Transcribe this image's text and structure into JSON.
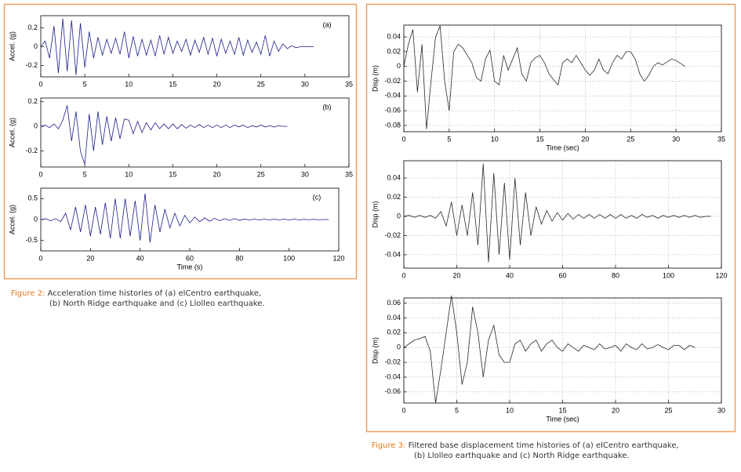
{
  "chart_data": [
    {
      "type": "line",
      "ylabel": "Accel. (g)",
      "annotation": "(a)",
      "color": "#1c1c8a",
      "grid": false,
      "xlim": [
        0,
        35
      ],
      "ylim": [
        -0.32,
        0.33
      ],
      "xticks": [
        0,
        5,
        10,
        15,
        20,
        25,
        30,
        35
      ],
      "yticks": [
        -0.2,
        0,
        0.2
      ],
      "x": [
        0,
        0.5,
        1,
        1.5,
        2,
        2.5,
        3,
        3.5,
        4,
        4.5,
        5,
        5.5,
        6,
        6.5,
        7,
        7.5,
        8,
        8.5,
        9,
        9.5,
        10,
        10.5,
        11,
        11.5,
        12,
        12.5,
        13,
        13.5,
        14,
        14.5,
        15,
        15.5,
        16,
        16.5,
        17,
        17.5,
        18,
        18.5,
        19,
        19.5,
        20,
        20.5,
        21,
        21.5,
        22,
        22.5,
        23,
        23.5,
        24,
        24.5,
        25,
        25.5,
        26,
        26.5,
        27,
        27.5,
        28,
        28.5,
        29,
        29.5,
        30,
        30.5,
        31
      ],
      "values": [
        0,
        0.06,
        -0.12,
        0.22,
        -0.28,
        0.3,
        -0.26,
        0.28,
        -0.3,
        0.25,
        -0.22,
        0.16,
        -0.12,
        0.1,
        -0.09,
        0.08,
        -0.07,
        0.09,
        -0.08,
        0.16,
        -0.12,
        0.11,
        -0.1,
        0.08,
        -0.09,
        0.07,
        -0.1,
        0.12,
        -0.08,
        0.1,
        -0.07,
        0.06,
        -0.05,
        0.08,
        -0.09,
        0.07,
        -0.06,
        0.1,
        -0.08,
        0.09,
        -0.1,
        0.08,
        -0.07,
        0.06,
        -0.08,
        0.1,
        -0.09,
        0.07,
        -0.06,
        0.05,
        -0.08,
        0.12,
        -0.1,
        0.06,
        -0.05,
        0.03,
        -0.02,
        0.01,
        -0.01,
        0,
        0,
        0,
        0
      ]
    },
    {
      "type": "line",
      "ylabel": "Accel. (g)",
      "annotation": "(b)",
      "color": "#1c1c8a",
      "grid": false,
      "xlim": [
        0,
        35
      ],
      "ylim": [
        -0.33,
        0.23
      ],
      "xticks": [
        0,
        5,
        10,
        15,
        20,
        25,
        30,
        35
      ],
      "yticks": [
        -0.2,
        0,
        0.2
      ],
      "x": [
        0,
        0.5,
        1,
        1.5,
        2,
        2.5,
        3,
        3.5,
        4,
        4.5,
        5,
        5.5,
        6,
        6.5,
        7,
        7.5,
        8,
        8.5,
        9,
        9.5,
        10,
        10.5,
        11,
        11.5,
        12,
        12.5,
        13,
        13.5,
        14,
        14.5,
        15,
        15.5,
        16,
        16.5,
        17,
        17.5,
        18,
        18.5,
        19,
        19.5,
        20,
        20.5,
        21,
        21.5,
        22,
        22.5,
        23,
        23.5,
        24,
        24.5,
        25,
        25.5,
        26,
        26.5,
        27,
        27.5,
        28
      ],
      "values": [
        0,
        0.01,
        -0.01,
        0.02,
        -0.02,
        0.05,
        0.17,
        -0.12,
        0.12,
        -0.2,
        -0.31,
        0.1,
        -0.2,
        0.12,
        -0.15,
        0.08,
        -0.12,
        0.07,
        -0.1,
        0.06,
        0.05,
        -0.06,
        0.04,
        -0.05,
        0.03,
        -0.03,
        0.03,
        -0.02,
        0.02,
        -0.02,
        0.02,
        -0.02,
        0.015,
        -0.015,
        0.01,
        -0.01,
        0.015,
        -0.01,
        0.01,
        -0.01,
        0.01,
        -0.01,
        0.01,
        -0.01,
        0.01,
        -0.005,
        0.01,
        -0.01,
        0.005,
        -0.005,
        0.01,
        -0.005,
        0.005,
        -0.005,
        0.005,
        0,
        0
      ]
    },
    {
      "type": "line",
      "ylabel": "Accel. (g)",
      "xlabel": "Time (s)",
      "annotation": "(c)",
      "color": "#1c1c8a",
      "grid": false,
      "xlim": [
        0,
        120
      ],
      "ylim": [
        -0.75,
        0.75
      ],
      "xticks": [
        0,
        20,
        40,
        60,
        80,
        100,
        120
      ],
      "yticks": [
        -0.5,
        0,
        0.5
      ],
      "x": [
        0,
        2,
        4,
        6,
        8,
        10,
        12,
        14,
        16,
        18,
        20,
        22,
        24,
        26,
        28,
        30,
        32,
        34,
        36,
        38,
        40,
        42,
        44,
        46,
        48,
        50,
        52,
        54,
        56,
        58,
        60,
        62,
        64,
        66,
        68,
        70,
        72,
        74,
        76,
        78,
        80,
        82,
        84,
        86,
        88,
        90,
        92,
        94,
        96,
        98,
        100,
        102,
        104,
        106,
        108,
        110,
        112,
        114,
        116
      ],
      "values": [
        0,
        0.02,
        -0.03,
        0.02,
        -0.05,
        0.15,
        -0.25,
        0.3,
        -0.3,
        0.35,
        -0.4,
        0.3,
        -0.35,
        0.4,
        -0.45,
        0.5,
        -0.45,
        0.5,
        -0.4,
        0.45,
        -0.5,
        0.62,
        -0.55,
        0.35,
        -0.3,
        0.25,
        -0.2,
        0.15,
        -0.15,
        0.1,
        -0.08,
        0.06,
        -0.05,
        0.04,
        -0.04,
        0.03,
        -0.03,
        0.02,
        -0.02,
        0.02,
        -0.02,
        0.01,
        -0.01,
        0.01,
        -0.01,
        0.01,
        -0.01,
        0.01,
        -0.01,
        0.01,
        -0.01,
        0.01,
        -0.01,
        0.005,
        -0.005,
        0.005,
        -0.005,
        0,
        0
      ]
    },
    {
      "type": "line",
      "ylabel": "Disp (m)",
      "xlabel": "Time (sec)",
      "color": "#2a2a2a",
      "grid": true,
      "xlim": [
        0,
        35
      ],
      "ylim": [
        -0.0885,
        0.056
      ],
      "xticks": [
        0,
        5,
        10,
        15,
        20,
        25,
        30,
        35
      ],
      "yticks": [
        -0.08,
        -0.06,
        -0.04,
        -0.02,
        0,
        0.02,
        0.04
      ],
      "x": [
        0,
        0.5,
        1,
        1.5,
        2,
        2.5,
        3,
        3.5,
        4,
        4.5,
        5,
        5.5,
        6,
        6.5,
        7,
        7.5,
        8,
        8.5,
        9,
        9.5,
        10,
        10.5,
        11,
        11.5,
        12,
        12.5,
        13,
        13.5,
        14,
        14.5,
        15,
        15.5,
        16,
        16.5,
        17,
        17.5,
        18,
        18.5,
        19,
        19.5,
        20,
        20.5,
        21,
        21.5,
        22,
        22.5,
        23,
        23.5,
        24,
        24.5,
        25,
        25.5,
        26,
        26.5,
        27,
        27.5,
        28,
        28.5,
        29,
        29.5,
        30,
        30.5,
        31
      ],
      "values": [
        0,
        0.03,
        0.05,
        -0.035,
        0.03,
        -0.085,
        -0.02,
        0.04,
        0.055,
        -0.02,
        -0.06,
        0.02,
        0.03,
        0.025,
        0.015,
        0.005,
        -0.015,
        -0.02,
        0.01,
        0.022,
        -0.02,
        -0.025,
        0.015,
        -0.005,
        0.01,
        0.025,
        -0.01,
        -0.02,
        0.005,
        0.012,
        0.015,
        0.005,
        -0.01,
        -0.018,
        -0.025,
        0.005,
        0.01,
        0.005,
        0.015,
        0.005,
        -0.005,
        -0.012,
        -0.005,
        0.01,
        -0.005,
        -0.01,
        0.005,
        0.015,
        0.01,
        0.02,
        0.02,
        0.01,
        -0.01,
        -0.02,
        -0.012,
        0,
        0.005,
        0.002,
        0.006,
        0.01,
        0.008,
        0.004,
        0
      ]
    },
    {
      "type": "line",
      "ylabel": "Disp (m)",
      "color": "#2a2a2a",
      "grid": true,
      "xlim": [
        0,
        120
      ],
      "ylim": [
        -0.054,
        0.058
      ],
      "xticks": [
        0,
        20,
        40,
        60,
        80,
        100,
        120
      ],
      "yticks": [
        -0.04,
        -0.02,
        0,
        0.02,
        0.04
      ],
      "x": [
        0,
        2,
        4,
        6,
        8,
        10,
        12,
        14,
        16,
        18,
        20,
        22,
        24,
        26,
        28,
        30,
        32,
        34,
        36,
        38,
        40,
        42,
        44,
        46,
        48,
        50,
        52,
        54,
        56,
        58,
        60,
        62,
        64,
        66,
        68,
        70,
        72,
        74,
        76,
        78,
        80,
        82,
        84,
        86,
        88,
        90,
        92,
        94,
        96,
        98,
        100,
        102,
        104,
        106,
        108,
        110,
        112,
        114,
        116
      ],
      "values": [
        0,
        0.001,
        -0.001,
        0.001,
        -0.001,
        0.001,
        -0.002,
        0.005,
        -0.01,
        0.015,
        -0.02,
        0.012,
        -0.02,
        0.025,
        -0.03,
        0.055,
        -0.048,
        0.045,
        -0.04,
        0.035,
        -0.045,
        0.04,
        -0.03,
        0.025,
        -0.02,
        0.01,
        -0.008,
        0.006,
        -0.005,
        0.004,
        -0.004,
        0.003,
        -0.003,
        0.002,
        -0.002,
        0.002,
        -0.002,
        0.002,
        -0.002,
        0.002,
        -0.002,
        0.002,
        -0.002,
        0.001,
        -0.002,
        0.002,
        -0.001,
        0.001,
        -0.002,
        0.001,
        -0.001,
        0.001,
        -0.001,
        0.001,
        -0.001,
        0.001,
        -0.001,
        0,
        0
      ]
    },
    {
      "type": "line",
      "ylabel": "Disp (m)",
      "xlabel": "Time (sec)",
      "color": "#2a2a2a",
      "grid": true,
      "xlim": [
        0,
        30
      ],
      "ylim": [
        -0.075,
        0.067
      ],
      "xticks": [
        0,
        5,
        10,
        15,
        20,
        25,
        30
      ],
      "yticks": [
        -0.06,
        -0.04,
        -0.02,
        0,
        0.02,
        0.04,
        0.06
      ],
      "x": [
        0,
        0.5,
        1,
        1.5,
        2,
        2.5,
        3,
        3.5,
        4,
        4.5,
        5,
        5.5,
        6,
        6.5,
        7,
        7.5,
        8,
        8.5,
        9,
        9.5,
        10,
        10.5,
        11,
        11.5,
        12,
        12.5,
        13,
        13.5,
        14,
        14.5,
        15,
        15.5,
        16,
        16.5,
        17,
        17.5,
        18,
        18.5,
        19,
        19.5,
        20,
        20.5,
        21,
        21.5,
        22,
        22.5,
        23,
        23.5,
        24,
        24.5,
        25,
        25.5,
        26,
        26.5,
        27,
        27.5
      ],
      "values": [
        0,
        0.005,
        0.01,
        0.012,
        0.015,
        -0.005,
        -0.075,
        -0.03,
        0.02,
        0.07,
        0.02,
        -0.05,
        -0.02,
        0.055,
        0.02,
        -0.04,
        0.01,
        0.03,
        -0.01,
        -0.02,
        -0.02,
        0.005,
        0.01,
        -0.005,
        0.005,
        0.01,
        -0.005,
        0.005,
        0.01,
        0,
        -0.005,
        0.005,
        0,
        -0.005,
        0.003,
        0,
        -0.003,
        0.005,
        -0.002,
        0,
        0.003,
        -0.005,
        0.005,
        0,
        -0.003,
        0.005,
        -0.002,
        0,
        0.004,
        0,
        -0.003,
        0.003,
        0.003,
        -0.003,
        0.003,
        0
      ]
    }
  ],
  "captions": [
    {
      "label": "Figure 2:",
      "lines": [
        "Acceleration time histories of (a) elCentro earthquake,",
        "(b) North Ridge earthquake and (c) Llolleo earthquake."
      ]
    },
    {
      "label": "Figure 3:",
      "lines": [
        "Filtered base displacement time histories of (a) elCentro earthquake,",
        "(b) Llolleo earthquake and (c) North Ridge earthquake."
      ]
    }
  ]
}
